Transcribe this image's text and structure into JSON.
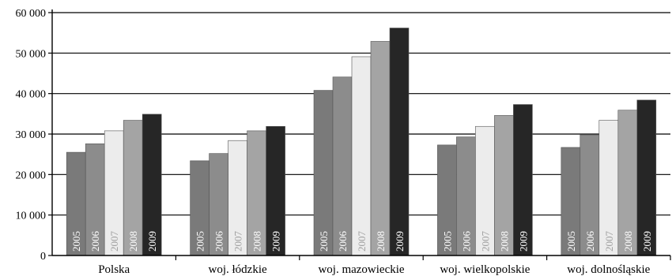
{
  "chart_data": {
    "type": "bar",
    "categories": [
      "Polska",
      "woj. łódzkie",
      "woj. mazowieckie",
      "woj. wielkopolskie",
      "woj. dolnośląskie"
    ],
    "series": [
      {
        "name": "2005",
        "color": "#7a7a7a",
        "values": [
          25500,
          23400,
          40800,
          27300,
          26700
        ]
      },
      {
        "name": "2006",
        "color": "#8c8c8c",
        "values": [
          27600,
          25200,
          44100,
          29300,
          29800
        ]
      },
      {
        "name": "2007",
        "color": "#ececec",
        "values": [
          30800,
          28400,
          49100,
          31900,
          33400
        ]
      },
      {
        "name": "2008",
        "color": "#a4a4a4",
        "values": [
          33400,
          30800,
          52900,
          34600,
          35900
        ]
      },
      {
        "name": "2009",
        "color": "#262626",
        "values": [
          34900,
          31900,
          56200,
          37300,
          38400
        ]
      }
    ],
    "y_ticks": [
      "0",
      "10 000",
      "20 000",
      "30 000",
      "40 000",
      "50 000",
      "60 000"
    ],
    "ylim": [
      0,
      60000
    ],
    "grid": true,
    "legend": "none"
  }
}
